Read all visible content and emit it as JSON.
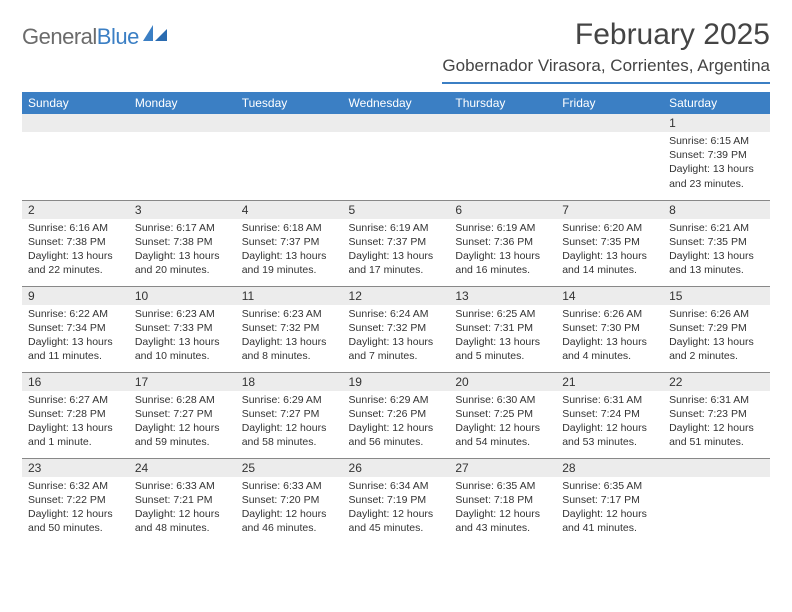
{
  "brand": {
    "name_gray": "General",
    "name_blue": "Blue"
  },
  "title": "February 2025",
  "location": "Gobernador Virasora, Corrientes, Argentina",
  "colors": {
    "header_bar": "#3b7fc4",
    "daynum_bg": "#ececec",
    "rule": "#888888",
    "text": "#333333",
    "logo_gray": "#6b6b6b"
  },
  "day_headers": [
    "Sunday",
    "Monday",
    "Tuesday",
    "Wednesday",
    "Thursday",
    "Friday",
    "Saturday"
  ],
  "weeks": [
    [
      {
        "n": "",
        "lines": [
          "",
          "",
          "",
          ""
        ]
      },
      {
        "n": "",
        "lines": [
          "",
          "",
          "",
          ""
        ]
      },
      {
        "n": "",
        "lines": [
          "",
          "",
          "",
          ""
        ]
      },
      {
        "n": "",
        "lines": [
          "",
          "",
          "",
          ""
        ]
      },
      {
        "n": "",
        "lines": [
          "",
          "",
          "",
          ""
        ]
      },
      {
        "n": "",
        "lines": [
          "",
          "",
          "",
          ""
        ]
      },
      {
        "n": "1",
        "lines": [
          "Sunrise: 6:15 AM",
          "Sunset: 7:39 PM",
          "Daylight: 13 hours",
          "and 23 minutes."
        ]
      }
    ],
    [
      {
        "n": "2",
        "lines": [
          "Sunrise: 6:16 AM",
          "Sunset: 7:38 PM",
          "Daylight: 13 hours",
          "and 22 minutes."
        ]
      },
      {
        "n": "3",
        "lines": [
          "Sunrise: 6:17 AM",
          "Sunset: 7:38 PM",
          "Daylight: 13 hours",
          "and 20 minutes."
        ]
      },
      {
        "n": "4",
        "lines": [
          "Sunrise: 6:18 AM",
          "Sunset: 7:37 PM",
          "Daylight: 13 hours",
          "and 19 minutes."
        ]
      },
      {
        "n": "5",
        "lines": [
          "Sunrise: 6:19 AM",
          "Sunset: 7:37 PM",
          "Daylight: 13 hours",
          "and 17 minutes."
        ]
      },
      {
        "n": "6",
        "lines": [
          "Sunrise: 6:19 AM",
          "Sunset: 7:36 PM",
          "Daylight: 13 hours",
          "and 16 minutes."
        ]
      },
      {
        "n": "7",
        "lines": [
          "Sunrise: 6:20 AM",
          "Sunset: 7:35 PM",
          "Daylight: 13 hours",
          "and 14 minutes."
        ]
      },
      {
        "n": "8",
        "lines": [
          "Sunrise: 6:21 AM",
          "Sunset: 7:35 PM",
          "Daylight: 13 hours",
          "and 13 minutes."
        ]
      }
    ],
    [
      {
        "n": "9",
        "lines": [
          "Sunrise: 6:22 AM",
          "Sunset: 7:34 PM",
          "Daylight: 13 hours",
          "and 11 minutes."
        ]
      },
      {
        "n": "10",
        "lines": [
          "Sunrise: 6:23 AM",
          "Sunset: 7:33 PM",
          "Daylight: 13 hours",
          "and 10 minutes."
        ]
      },
      {
        "n": "11",
        "lines": [
          "Sunrise: 6:23 AM",
          "Sunset: 7:32 PM",
          "Daylight: 13 hours",
          "and 8 minutes."
        ]
      },
      {
        "n": "12",
        "lines": [
          "Sunrise: 6:24 AM",
          "Sunset: 7:32 PM",
          "Daylight: 13 hours",
          "and 7 minutes."
        ]
      },
      {
        "n": "13",
        "lines": [
          "Sunrise: 6:25 AM",
          "Sunset: 7:31 PM",
          "Daylight: 13 hours",
          "and 5 minutes."
        ]
      },
      {
        "n": "14",
        "lines": [
          "Sunrise: 6:26 AM",
          "Sunset: 7:30 PM",
          "Daylight: 13 hours",
          "and 4 minutes."
        ]
      },
      {
        "n": "15",
        "lines": [
          "Sunrise: 6:26 AM",
          "Sunset: 7:29 PM",
          "Daylight: 13 hours",
          "and 2 minutes."
        ]
      }
    ],
    [
      {
        "n": "16",
        "lines": [
          "Sunrise: 6:27 AM",
          "Sunset: 7:28 PM",
          "Daylight: 13 hours",
          "and 1 minute."
        ]
      },
      {
        "n": "17",
        "lines": [
          "Sunrise: 6:28 AM",
          "Sunset: 7:27 PM",
          "Daylight: 12 hours",
          "and 59 minutes."
        ]
      },
      {
        "n": "18",
        "lines": [
          "Sunrise: 6:29 AM",
          "Sunset: 7:27 PM",
          "Daylight: 12 hours",
          "and 58 minutes."
        ]
      },
      {
        "n": "19",
        "lines": [
          "Sunrise: 6:29 AM",
          "Sunset: 7:26 PM",
          "Daylight: 12 hours",
          "and 56 minutes."
        ]
      },
      {
        "n": "20",
        "lines": [
          "Sunrise: 6:30 AM",
          "Sunset: 7:25 PM",
          "Daylight: 12 hours",
          "and 54 minutes."
        ]
      },
      {
        "n": "21",
        "lines": [
          "Sunrise: 6:31 AM",
          "Sunset: 7:24 PM",
          "Daylight: 12 hours",
          "and 53 minutes."
        ]
      },
      {
        "n": "22",
        "lines": [
          "Sunrise: 6:31 AM",
          "Sunset: 7:23 PM",
          "Daylight: 12 hours",
          "and 51 minutes."
        ]
      }
    ],
    [
      {
        "n": "23",
        "lines": [
          "Sunrise: 6:32 AM",
          "Sunset: 7:22 PM",
          "Daylight: 12 hours",
          "and 50 minutes."
        ]
      },
      {
        "n": "24",
        "lines": [
          "Sunrise: 6:33 AM",
          "Sunset: 7:21 PM",
          "Daylight: 12 hours",
          "and 48 minutes."
        ]
      },
      {
        "n": "25",
        "lines": [
          "Sunrise: 6:33 AM",
          "Sunset: 7:20 PM",
          "Daylight: 12 hours",
          "and 46 minutes."
        ]
      },
      {
        "n": "26",
        "lines": [
          "Sunrise: 6:34 AM",
          "Sunset: 7:19 PM",
          "Daylight: 12 hours",
          "and 45 minutes."
        ]
      },
      {
        "n": "27",
        "lines": [
          "Sunrise: 6:35 AM",
          "Sunset: 7:18 PM",
          "Daylight: 12 hours",
          "and 43 minutes."
        ]
      },
      {
        "n": "28",
        "lines": [
          "Sunrise: 6:35 AM",
          "Sunset: 7:17 PM",
          "Daylight: 12 hours",
          "and 41 minutes."
        ]
      },
      {
        "n": "",
        "lines": [
          "",
          "",
          "",
          ""
        ]
      }
    ]
  ]
}
